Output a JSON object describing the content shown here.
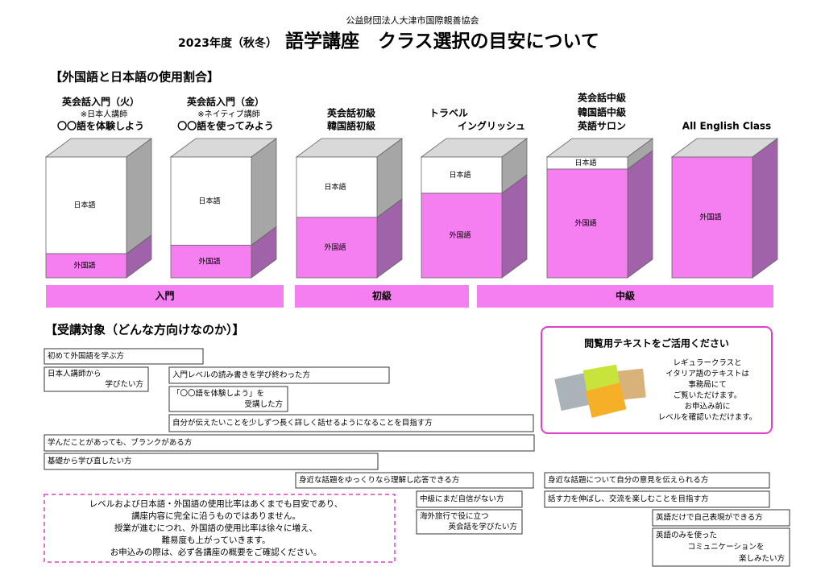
{
  "header": {
    "org": "公益財団法人大津市国際親善協会",
    "title_prefix": "2023年度（秋冬）",
    "title_main": "語学講座　クラス選択の目安について"
  },
  "ratio_section": {
    "heading": "【外国語と日本語の使用割合】",
    "classes": [
      {
        "lines": [
          "英会話入門（火）",
          "※日本人講師",
          "〇〇語を体験しよう"
        ],
        "japanese": "日本語",
        "foreign": "外国語"
      },
      {
        "lines": [
          "英会話入門（金）",
          "※ネイティブ講師",
          "〇〇語を使ってみよう"
        ],
        "japanese": "日本語",
        "foreign": "外国語"
      },
      {
        "lines": [
          "英会話初級",
          "韓国語初級"
        ],
        "japanese": "日本語",
        "foreign": "外国語"
      },
      {
        "lines": [
          "トラベル",
          "イングリッシュ"
        ],
        "japanese": "日本語",
        "foreign": "外国語"
      },
      {
        "lines": [
          "英会話中級",
          "韓国語中級",
          "英語サロン"
        ],
        "japanese": "日本語",
        "foreign": "外国語"
      },
      {
        "lines": [
          "All English Class"
        ],
        "foreign": "外国語"
      }
    ],
    "levels": [
      "入門",
      "初級",
      "中級"
    ]
  },
  "target_section": {
    "heading": "【受講対象（どんな方向けなのか）】",
    "targets": [
      {
        "lines": [
          "初めて外国語を学ぶ方"
        ]
      },
      {
        "lines": [
          "日本人講師から",
          "学びたい方"
        ]
      },
      {
        "lines": [
          "入門レベルの読み書きを学び終わった方"
        ]
      },
      {
        "lines": [
          "「〇〇語を体験しよう」を",
          "受講した方"
        ]
      },
      {
        "lines": [
          "自分が伝えたいことを少しずつ長く詳しく話せるようになることを目指す方"
        ]
      },
      {
        "lines": [
          "学んだことがあっても、ブランクがある方"
        ]
      },
      {
        "lines": [
          "基礎から学び直したい方"
        ]
      },
      {
        "lines": [
          "身近な話題をゆっくりなら理解し応答できる方"
        ]
      },
      {
        "lines": [
          "中級にまだ自信がない方"
        ]
      },
      {
        "lines": [
          "海外旅行で役に立つ",
          "英会話を学びたい方"
        ]
      },
      {
        "lines": [
          "身近な話題について自分の意見を伝えられる方"
        ]
      },
      {
        "lines": [
          "話す力を伸ばし、交流を楽しむことを目指す方"
        ]
      },
      {
        "lines": [
          "英語だけで自己表現ができる方"
        ]
      },
      {
        "lines": [
          "英語のみを使った",
          "コミュニケーションを",
          "楽しみたい方"
        ]
      }
    ]
  },
  "note": {
    "lines": [
      "レベルおよび日本語・外国語の使用比率はあくまでも目安であり、",
      "講座内容に完全に沿うものではありません。",
      "授業が進むにつれ、外国語の使用比率は徐々に増え、",
      "難易度も上がっていきます。",
      "お申込みの際は、必ず各講座の概要をご確認ください。"
    ]
  },
  "callout": {
    "title": "閲覧用テキストをご活用ください",
    "lines": [
      "レギュラークラスと",
      "イタリア語のテキストは",
      "事務局にて",
      "ご覧いただけます。",
      "お申込み前に",
      "レベルを確認いただけます。"
    ]
  }
}
